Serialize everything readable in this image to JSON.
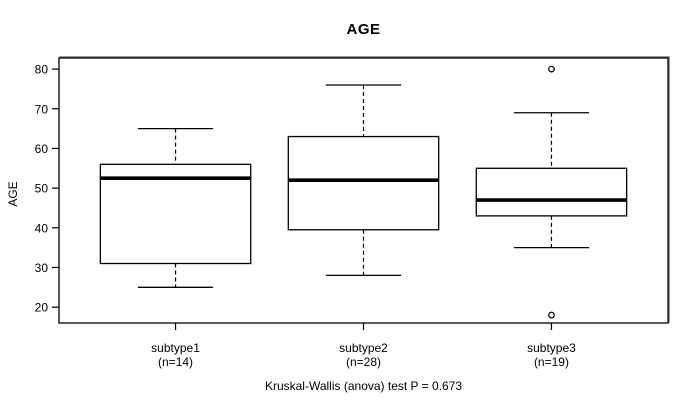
{
  "chart_data": {
    "type": "boxplot",
    "title": "AGE",
    "ylabel": "AGE",
    "xlabel": "",
    "footnote": "Kruskal-Wallis (anova) test P = 0.673",
    "ylim": [
      16,
      82.8
    ],
    "yticks": [
      20,
      30,
      40,
      50,
      60,
      70,
      80
    ],
    "grid": false,
    "legend": "none",
    "whisker_style": "dashed",
    "box_fill": "#ffffff",
    "line_color": "#000000",
    "frame_color": "#000000",
    "frame_shadow_color": "#808080",
    "groups": [
      {
        "label": "subtype1",
        "sublabel": "(n=14)",
        "n": 14,
        "whisker_low": 25,
        "q1": 31,
        "median": 52.5,
        "q3": 56,
        "whisker_high": 65,
        "outliers": []
      },
      {
        "label": "subtype2",
        "sublabel": "(n=28)",
        "n": 28,
        "whisker_low": 28,
        "q1": 39.5,
        "median": 52,
        "q3": 63,
        "whisker_high": 76,
        "outliers": []
      },
      {
        "label": "subtype3",
        "sublabel": "(n=19)",
        "n": 19,
        "whisker_low": 35,
        "q1": 43,
        "median": 47,
        "q3": 55,
        "whisker_high": 69,
        "outliers": [
          18,
          80
        ]
      }
    ]
  }
}
